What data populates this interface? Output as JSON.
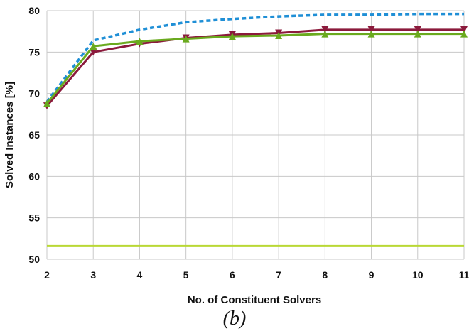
{
  "chart_data": {
    "type": "line",
    "title": "",
    "xlabel": "No. of Constituent Solvers",
    "ylabel": "Solved Instances [%]",
    "caption": "(b)",
    "x": [
      2,
      3,
      4,
      5,
      6,
      7,
      8,
      9,
      10,
      11
    ],
    "xlim": [
      2,
      11
    ],
    "ylim": [
      50,
      80
    ],
    "yticks": [
      50,
      55,
      60,
      65,
      70,
      75,
      80
    ],
    "grid": true,
    "legend": "none",
    "series": [
      {
        "style": "dashed",
        "color": "#1f8fd6",
        "marker": "none",
        "values": [
          69.0,
          76.4,
          77.7,
          78.6,
          79.0,
          79.3,
          79.5,
          79.5,
          79.6,
          79.6
        ]
      },
      {
        "style": "solid",
        "color": "#8b1a3c",
        "marker": "down-triangle",
        "values": [
          68.5,
          75.0,
          76.0,
          76.7,
          77.1,
          77.3,
          77.7,
          77.7,
          77.7,
          77.7
        ]
      },
      {
        "style": "solid",
        "color": "#6aaa1e",
        "marker": "up-triangle",
        "values": [
          68.8,
          75.7,
          76.3,
          76.6,
          76.9,
          77.0,
          77.2,
          77.2,
          77.2,
          77.2
        ]
      },
      {
        "style": "solid",
        "color": "#b9d835",
        "marker": "none",
        "values": [
          51.6,
          51.6,
          51.6,
          51.6,
          51.6,
          51.6,
          51.6,
          51.6,
          51.6,
          51.6
        ]
      }
    ]
  }
}
